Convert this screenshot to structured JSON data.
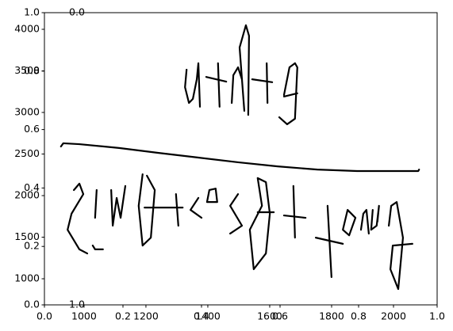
{
  "chart_data": [
    {
      "type": "line",
      "xlim": [
        0,
        1
      ],
      "ylim": [
        0,
        1
      ],
      "xticks": [
        {
          "value": 0,
          "label": "0.0"
        },
        {
          "value": 0.2,
          "label": "0.2"
        },
        {
          "value": 0.4,
          "label": "0.4"
        },
        {
          "value": 0.6,
          "label": "0.6"
        },
        {
          "value": 0.8,
          "label": "0.8"
        },
        {
          "value": 1,
          "label": "1.0"
        }
      ],
      "yticks": [
        {
          "value": 0,
          "label": "0.0"
        },
        {
          "value": 0.2,
          "label": "0.2"
        },
        {
          "value": 0.4,
          "label": "0.4"
        },
        {
          "value": 0.6,
          "label": "0.6"
        },
        {
          "value": 0.8,
          "label": "0.8"
        },
        {
          "value": 1,
          "label": "1.0"
        }
      ],
      "series": [
        {
          "color": "#000000",
          "x": [
            0.042,
            0.048,
            0.089,
            0.19,
            0.291,
            0.392,
            0.493,
            0.594,
            0.695,
            0.796,
            0.897,
            0.952,
            0.954
          ],
          "values": [
            0.542,
            0.553,
            0.55,
            0.537,
            0.52,
            0.504,
            0.488,
            0.474,
            0.463,
            0.458,
            0.458,
            0.458,
            0.463
          ]
        },
        {
          "color": "#000000",
          "x": [
            0.362,
            0.358,
            0.368,
            0.378,
            0.388,
            0.392,
            0.396
          ],
          "values": [
            0.805,
            0.745,
            0.691,
            0.705,
            0.772,
            0.827,
            0.678
          ]
        },
        {
          "color": "#000000",
          "x": [
            0.442,
            0.446
          ],
          "values": [
            0.827,
            0.678
          ]
        },
        {
          "color": "#000000",
          "x": [
            0.412,
            0.463
          ],
          "values": [
            0.78,
            0.764
          ]
        },
        {
          "color": "#000000",
          "x": [
            0.477,
            0.481,
            0.493,
            0.503,
            0.509
          ],
          "values": [
            0.691,
            0.786,
            0.813,
            0.772,
            0.664
          ]
        },
        {
          "color": "#000000",
          "x": [
            0.503,
            0.497,
            0.513,
            0.521,
            0.519
          ],
          "values": [
            0.772,
            0.881,
            0.957,
            0.921,
            0.65
          ]
        },
        {
          "color": "#000000",
          "x": [
            0.566,
            0.568
          ],
          "values": [
            0.827,
            0.691
          ]
        },
        {
          "color": "#000000",
          "x": [
            0.529,
            0.58
          ],
          "values": [
            0.772,
            0.762
          ]
        },
        {
          "color": "#000000",
          "x": [
            0.61,
            0.624,
            0.638,
            0.644,
            0.638,
            0.618,
            0.598
          ],
          "values": [
            0.718,
            0.813,
            0.827,
            0.813,
            0.637,
            0.618,
            0.642
          ]
        },
        {
          "color": "#000000",
          "x": [
            0.61,
            0.644
          ],
          "values": [
            0.713,
            0.724
          ]
        },
        {
          "color": "#000000",
          "x": [
            0.075,
            0.089,
            0.099,
            0.069,
            0.059,
            0.089,
            0.109
          ],
          "values": [
            0.393,
            0.415,
            0.379,
            0.312,
            0.257,
            0.19,
            0.176
          ]
        },
        {
          "color": "#000000",
          "x": [
            0.123,
            0.129,
            0.149
          ],
          "values": [
            0.203,
            0.19,
            0.19
          ]
        },
        {
          "color": "#000000",
          "x": [
            0.129,
            0.133
          ],
          "values": [
            0.298,
            0.393
          ]
        },
        {
          "color": "#000000",
          "x": [
            0.17,
            0.174,
            0.184,
            0.194,
            0.206
          ],
          "values": [
            0.393,
            0.271,
            0.366,
            0.298,
            0.407
          ]
        },
        {
          "color": "#000000",
          "x": [
            0.25,
            0.24,
            0.25,
            0.271,
            0.281,
            0.261
          ],
          "values": [
            0.447,
            0.339,
            0.203,
            0.23,
            0.393,
            0.442
          ]
        },
        {
          "color": "#000000",
          "x": [
            0.255,
            0.352
          ],
          "values": [
            0.333,
            0.333
          ]
        },
        {
          "color": "#000000",
          "x": [
            0.335,
            0.341
          ],
          "values": [
            0.379,
            0.271
          ]
        },
        {
          "color": "#000000",
          "x": [
            0.392,
            0.372,
            0.4
          ],
          "values": [
            0.366,
            0.325,
            0.298
          ]
        },
        {
          "color": "#000000",
          "x": [
            0.42,
            0.414,
            0.44,
            0.436,
            0.42
          ],
          "values": [
            0.393,
            0.352,
            0.352,
            0.398,
            0.393
          ]
        },
        {
          "color": "#000000",
          "x": [
            0.493,
            0.473,
            0.503,
            0.473
          ],
          "values": [
            0.379,
            0.339,
            0.271,
            0.244
          ]
        },
        {
          "color": "#000000",
          "x": [
            0.543,
            0.554,
            0.523,
            0.533,
            0.564,
            0.574,
            0.564,
            0.543
          ],
          "values": [
            0.434,
            0.339,
            0.257,
            0.122,
            0.176,
            0.312,
            0.42,
            0.434
          ]
        },
        {
          "color": "#000000",
          "x": [
            0.543,
            0.584
          ],
          "values": [
            0.317,
            0.317
          ]
        },
        {
          "color": "#000000",
          "x": [
            0.634,
            0.638
          ],
          "values": [
            0.407,
            0.23
          ]
        },
        {
          "color": "#000000",
          "x": [
            0.61,
            0.665
          ],
          "values": [
            0.306,
            0.298
          ]
        },
        {
          "color": "#000000",
          "x": [
            0.721,
            0.731
          ],
          "values": [
            0.339,
            0.095
          ]
        },
        {
          "color": "#000000",
          "x": [
            0.691,
            0.76
          ],
          "values": [
            0.23,
            0.209
          ]
        },
        {
          "color": "#000000",
          "x": [
            0.772,
            0.76,
            0.776,
            0.792,
            0.772
          ],
          "values": [
            0.325,
            0.257,
            0.238,
            0.298,
            0.325
          ]
        },
        {
          "color": "#000000",
          "x": [
            0.806,
            0.812,
            0.82,
            0.826
          ],
          "values": [
            0.257,
            0.312,
            0.325,
            0.244
          ]
        },
        {
          "color": "#000000",
          "x": [
            0.836,
            0.832,
            0.846,
            0.852,
            0.848
          ],
          "values": [
            0.325,
            0.257,
            0.271,
            0.339,
            0.285
          ]
        },
        {
          "color": "#000000",
          "x": [
            0.877,
            0.883,
            0.897,
            0.913,
            0.901,
            0.881,
            0.887,
            0.937
          ],
          "values": [
            0.271,
            0.339,
            0.352,
            0.23,
            0.054,
            0.122,
            0.203,
            0.209
          ]
        }
      ]
    },
    {
      "type": "line",
      "xlim": [
        872,
        2141
      ],
      "ylim": [
        686,
        4200
      ],
      "xticks": [
        1000,
        1200,
        1400,
        1600,
        1800,
        2000
      ],
      "yticks": [
        1000,
        1500,
        2000,
        2500,
        3000,
        3500,
        4000
      ]
    },
    {
      "type": "line",
      "ylim": [
        0,
        1
      ],
      "yinverted": true,
      "yticks": [
        {
          "value": 0,
          "label": "0.0"
        },
        {
          "value": 1,
          "label": "1.0"
        }
      ]
    }
  ]
}
